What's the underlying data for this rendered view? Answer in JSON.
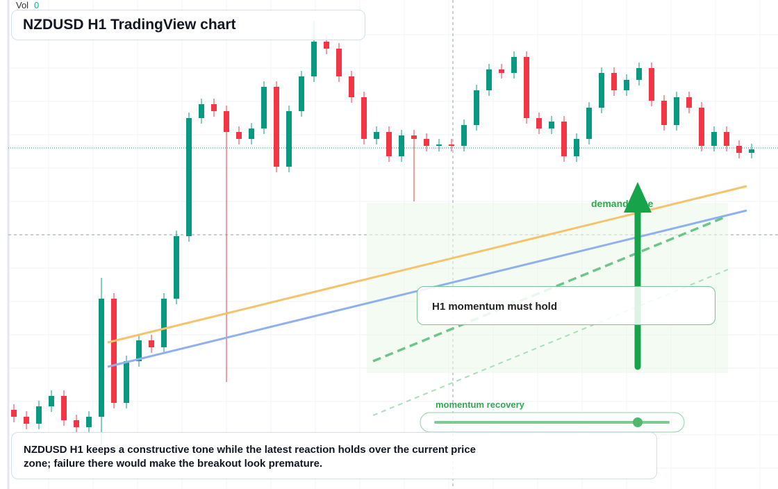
{
  "legend": {
    "label": "Vol",
    "value": 0
  },
  "title": "NZDUSD H1 TradingView chart",
  "annotations": {
    "zone": "demand zone",
    "box": "H1 momentum must hold",
    "slider": "momentum recovery"
  },
  "caption": "NZDUSD H1 keeps a constructive tone while the latest reaction holds over the current price zone; failure there would make the breakout look premature.",
  "chart_data": {
    "type": "candlestick",
    "ylim": [
      0.5496,
      0.62
    ],
    "up_color": "#089981",
    "down_color": "#f23645",
    "open": [
      0.561,
      0.56,
      0.559,
      0.5615,
      0.563,
      0.5595,
      0.5585,
      0.56,
      0.577,
      0.562,
      0.568,
      0.571,
      0.57,
      0.577,
      0.586,
      0.603,
      0.605,
      0.604,
      0.601,
      0.6,
      0.6015,
      0.6075,
      0.596,
      0.604,
      0.609,
      0.614,
      0.613,
      0.609,
      0.606,
      0.6,
      0.601,
      0.5975,
      0.6005,
      0.6,
      0.599,
      0.5992,
      0.599,
      0.602,
      0.607,
      0.61,
      0.6095,
      0.6118,
      0.603,
      0.6015,
      0.6025,
      0.5975,
      0.6,
      0.6045,
      0.6095,
      0.607,
      0.6085,
      0.6102,
      0.6055,
      0.602,
      0.606,
      0.6045,
      0.599,
      0.601,
      0.599,
      0.598
    ],
    "high": [
      0.5618,
      0.5608,
      0.5623,
      0.5638,
      0.5638,
      0.5603,
      0.5608,
      0.58,
      0.5778,
      0.5688,
      0.5718,
      0.5718,
      0.5778,
      0.5868,
      0.6038,
      0.6058,
      0.6058,
      0.6048,
      0.6018,
      0.6023,
      0.6083,
      0.6083,
      0.6048,
      0.6098,
      0.617,
      0.6148,
      0.6138,
      0.6098,
      0.6068,
      0.6018,
      0.6018,
      0.6013,
      0.6013,
      0.6008,
      0.6,
      0.6,
      0.6028,
      0.6078,
      0.6108,
      0.6108,
      0.6126,
      0.6126,
      0.6038,
      0.6033,
      0.6033,
      0.6008,
      0.6053,
      0.6103,
      0.6103,
      0.6093,
      0.611,
      0.611,
      0.6063,
      0.6068,
      0.6068,
      0.6053,
      0.6018,
      0.6018,
      0.5998,
      0.5993
    ],
    "low": [
      0.5592,
      0.5582,
      0.5582,
      0.5607,
      0.5587,
      0.5577,
      0.5577,
      0.556,
      0.5612,
      0.5612,
      0.5672,
      0.5692,
      0.5692,
      0.5762,
      0.5852,
      0.6022,
      0.6032,
      0.565,
      0.5992,
      0.5992,
      0.6007,
      0.5952,
      0.5952,
      0.6032,
      0.6082,
      0.6122,
      0.6082,
      0.6052,
      0.5992,
      0.5992,
      0.5967,
      0.5967,
      0.591,
      0.5982,
      0.5982,
      0.5982,
      0.5982,
      0.6012,
      0.6062,
      0.6087,
      0.6087,
      0.6022,
      0.6007,
      0.6007,
      0.5967,
      0.5967,
      0.5992,
      0.6037,
      0.6062,
      0.6062,
      0.6077,
      0.6047,
      0.6012,
      0.6012,
      0.6037,
      0.5982,
      0.5982,
      0.5982,
      0.5972,
      0.5972
    ],
    "close": [
      0.56,
      0.559,
      0.5615,
      0.563,
      0.5595,
      0.5585,
      0.56,
      0.577,
      0.562,
      0.568,
      0.571,
      0.57,
      0.577,
      0.586,
      0.603,
      0.605,
      0.604,
      0.601,
      0.6,
      0.6015,
      0.6075,
      0.596,
      0.604,
      0.609,
      0.614,
      0.613,
      0.609,
      0.606,
      0.6,
      0.601,
      0.5975,
      0.6005,
      0.6,
      0.599,
      0.5992,
      0.599,
      0.602,
      0.607,
      0.61,
      0.6095,
      0.6118,
      0.603,
      0.6015,
      0.6025,
      0.5975,
      0.6,
      0.6045,
      0.6095,
      0.607,
      0.6085,
      0.6102,
      0.6055,
      0.602,
      0.606,
      0.6045,
      0.599,
      0.601,
      0.599,
      0.598,
      0.5985
    ]
  }
}
